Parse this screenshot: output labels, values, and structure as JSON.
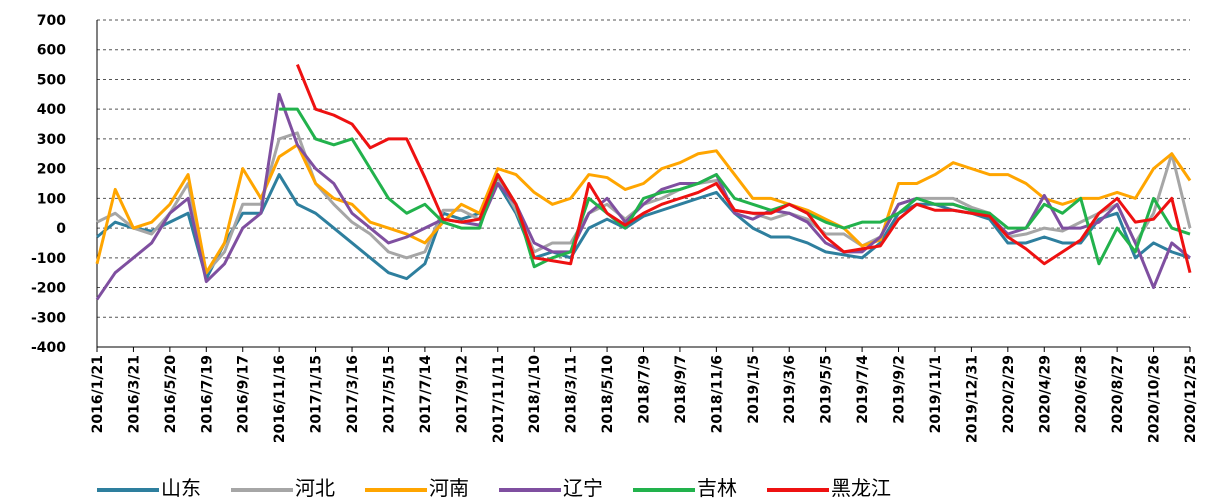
{
  "chart_data": {
    "type": "line",
    "categories": [
      "2016/1/21",
      null,
      "2016/3/21",
      null,
      "2016/5/20",
      null,
      "2016/7/19",
      null,
      "2016/9/17",
      null,
      "2016/11/16",
      null,
      "2017/1/15",
      null,
      "2017/3/16",
      null,
      "2017/5/15",
      null,
      "2017/7/14",
      null,
      "2017/9/12",
      null,
      "2017/11/11",
      null,
      "2018/1/10",
      null,
      "2018/3/11",
      null,
      "2018/5/10",
      null,
      "2018/7/9",
      null,
      "2018/9/7",
      null,
      "2018/11/6",
      null,
      "2019/1/5",
      null,
      "2019/3/6",
      null,
      "2019/5/5",
      null,
      "2019/7/4",
      null,
      "2019/9/2",
      null,
      "2019/11/1",
      null,
      "2019/12/31",
      null,
      "2020/2/29",
      null,
      "2020/4/29",
      null,
      "2020/6/28",
      null,
      "2020/8/27",
      null,
      "2020/10/26",
      null,
      "2020/12/25"
    ],
    "series": [
      {
        "name": "山东",
        "color": "#2e7f9e",
        "values": [
          -30,
          20,
          0,
          -10,
          20,
          50,
          -170,
          -50,
          50,
          50,
          180,
          80,
          50,
          0,
          -50,
          -100,
          -150,
          -170,
          -120,
          50,
          30,
          50,
          150,
          50,
          -100,
          -80,
          -100,
          0,
          30,
          0,
          40,
          60,
          80,
          100,
          120,
          50,
          0,
          -30,
          -30,
          -50,
          -80,
          -90,
          -100,
          -50,
          50,
          80,
          80,
          60,
          50,
          30,
          -50,
          -50,
          -30,
          -50,
          -50,
          30,
          50,
          -100,
          -50,
          -80,
          -100
        ]
      },
      {
        "name": "河北",
        "color": "#a6a6a6",
        "values": [
          20,
          50,
          0,
          -20,
          50,
          150,
          -150,
          -80,
          80,
          80,
          300,
          320,
          150,
          80,
          20,
          -20,
          -80,
          -100,
          -80,
          60,
          60,
          30,
          170,
          60,
          -80,
          -50,
          -50,
          50,
          80,
          30,
          80,
          100,
          130,
          150,
          160,
          60,
          50,
          30,
          50,
          30,
          -20,
          -20,
          -60,
          -30,
          80,
          100,
          100,
          100,
          70,
          50,
          -30,
          -20,
          0,
          -10,
          20,
          50,
          80,
          -50,
          50,
          250,
          0
        ]
      },
      {
        "name": "河南",
        "color": "#ffa500",
        "values": [
          -120,
          130,
          0,
          20,
          80,
          180,
          -150,
          -50,
          200,
          100,
          240,
          280,
          150,
          100,
          80,
          20,
          0,
          -20,
          -50,
          20,
          80,
          50,
          200,
          180,
          120,
          80,
          100,
          180,
          170,
          130,
          150,
          200,
          220,
          250,
          260,
          180,
          100,
          100,
          80,
          60,
          30,
          0,
          -60,
          -40,
          150,
          150,
          180,
          220,
          200,
          180,
          180,
          150,
          100,
          80,
          100,
          100,
          120,
          100,
          200,
          250,
          160
        ]
      },
      {
        "name": "辽宁",
        "color": "#7f4fa0",
        "values": [
          -240,
          -150,
          -100,
          -50,
          50,
          100,
          -180,
          -120,
          0,
          50,
          450,
          280,
          200,
          150,
          50,
          0,
          -50,
          -30,
          0,
          30,
          20,
          10,
          150,
          80,
          -50,
          -80,
          -80,
          50,
          100,
          20,
          80,
          130,
          150,
          150,
          180,
          50,
          30,
          60,
          50,
          20,
          -50,
          -80,
          -80,
          -30,
          80,
          100,
          80,
          80,
          60,
          40,
          -20,
          0,
          110,
          0,
          0,
          20,
          80,
          -50,
          -200,
          -50,
          -100
        ]
      },
      {
        "name": "吉林",
        "color": "#22b24c",
        "values": [
          null,
          null,
          null,
          null,
          null,
          null,
          null,
          null,
          null,
          null,
          400,
          400,
          300,
          280,
          300,
          200,
          100,
          50,
          80,
          20,
          0,
          0,
          180,
          80,
          -130,
          -100,
          -80,
          100,
          50,
          0,
          100,
          120,
          130,
          150,
          180,
          100,
          80,
          60,
          80,
          50,
          20,
          0,
          20,
          20,
          50,
          100,
          80,
          80,
          60,
          50,
          0,
          0,
          80,
          50,
          100,
          -120,
          0,
          -80,
          100,
          0,
          -20
        ]
      },
      {
        "name": "黑龙江",
        "color": "#ee1111",
        "values": [
          null,
          null,
          null,
          null,
          null,
          null,
          null,
          null,
          null,
          null,
          null,
          550,
          400,
          380,
          350,
          270,
          300,
          300,
          170,
          30,
          20,
          30,
          180,
          80,
          -100,
          -110,
          -120,
          150,
          50,
          10,
          50,
          80,
          100,
          120,
          150,
          60,
          50,
          50,
          80,
          50,
          -30,
          -80,
          -70,
          -60,
          30,
          80,
          60,
          60,
          50,
          40,
          -30,
          -70,
          -120,
          -80,
          -40,
          50,
          100,
          20,
          30,
          100,
          -150
        ]
      }
    ],
    "ylim": [
      -400,
      700
    ],
    "yticks": [
      -400,
      -300,
      -200,
      -100,
      0,
      100,
      200,
      300,
      400,
      500,
      600,
      700
    ],
    "grid": true
  }
}
